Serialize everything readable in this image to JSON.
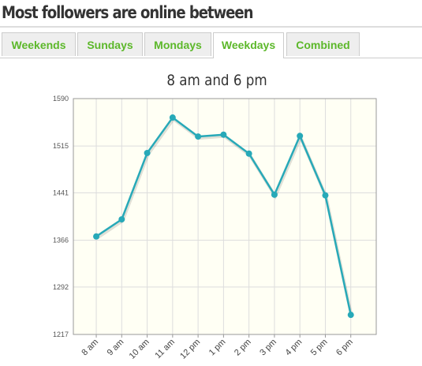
{
  "heading": "Most followers are online between",
  "tabs": [
    {
      "label": "Weekends"
    },
    {
      "label": "Sundays"
    },
    {
      "label": "Mondays"
    },
    {
      "label": "Weekdays",
      "active": true
    },
    {
      "label": "Combined"
    }
  ],
  "chart_data": {
    "type": "line",
    "title": "8 am and 6 pm",
    "categories": [
      "8 am",
      "9 am",
      "10 am",
      "11 am",
      "12 pm",
      "1 pm",
      "2 pm",
      "3 pm",
      "4 pm",
      "5 pm",
      "6 pm"
    ],
    "values": [
      1372,
      1399,
      1504,
      1560,
      1530,
      1533,
      1503,
      1438,
      1531,
      1437,
      1248
    ],
    "color": "#27a9b8",
    "ylim": [
      1217,
      1590
    ],
    "yticks": [
      1217,
      1292,
      1366,
      1441,
      1515,
      1590
    ],
    "grid": true
  }
}
